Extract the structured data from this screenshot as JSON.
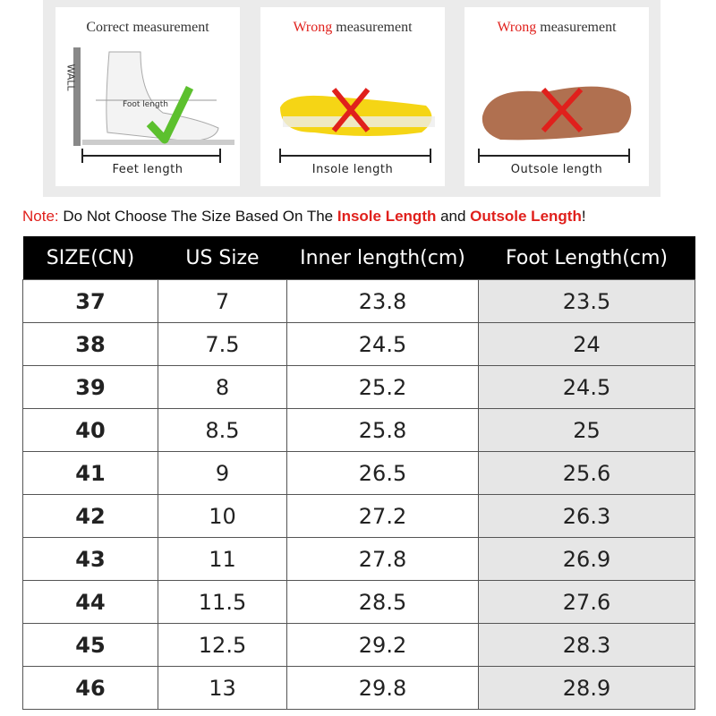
{
  "panels": [
    {
      "title_parts": [
        "Correct measurement"
      ],
      "wall": "WALL",
      "foot_label": "Foot length",
      "caption": "Feet length"
    },
    {
      "title_parts": [
        "Wrong",
        " measurement"
      ],
      "caption": "Insole length"
    },
    {
      "title_parts": [
        "Wrong",
        " measurement"
      ],
      "caption": "Outsole length"
    }
  ],
  "note": [
    "Note:",
    " Do Not Choose The Size Based On The ",
    "Insole Length",
    " and ",
    "Outsole Length",
    "!"
  ],
  "table": {
    "header": [
      "SIZE(CN)",
      "US Size",
      "Inner length(cm)",
      "Foot Length(cm)"
    ],
    "rows": [
      [
        "37",
        "7",
        "23.8",
        "23.5"
      ],
      [
        "38",
        "7.5",
        "24.5",
        "24"
      ],
      [
        "39",
        "8",
        "25.2",
        "24.5"
      ],
      [
        "40",
        "8.5",
        "25.8",
        "25"
      ],
      [
        "41",
        "9",
        "26.5",
        "25.6"
      ],
      [
        "42",
        "10",
        "27.2",
        "26.3"
      ],
      [
        "43",
        "11",
        "27.8",
        "26.9"
      ],
      [
        "44",
        "11.5",
        "28.5",
        "27.6"
      ],
      [
        "45",
        "12.5",
        "29.2",
        "28.3"
      ],
      [
        "46",
        "13",
        "29.8",
        "28.9"
      ]
    ]
  }
}
